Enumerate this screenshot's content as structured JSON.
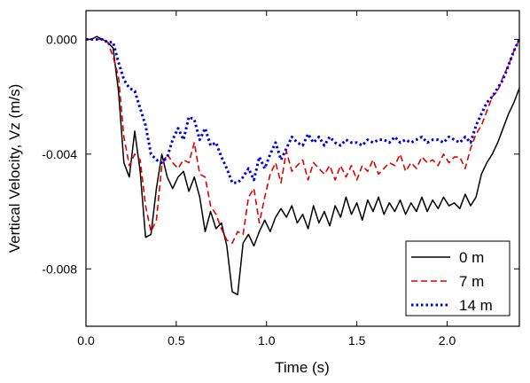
{
  "chart_data": {
    "type": "line",
    "title": "",
    "xlabel": "Time (s)",
    "ylabel": "Vertical Velocity, Vz (m/s)",
    "xlim": [
      0.0,
      2.4
    ],
    "ylim": [
      -0.01,
      0.001
    ],
    "xticks": [
      {
        "value": 0.0,
        "label": "0.0"
      },
      {
        "value": 0.5,
        "label": "0.5"
      },
      {
        "value": 1.0,
        "label": "1.0"
      },
      {
        "value": 1.5,
        "label": "1.5"
      },
      {
        "value": 2.0,
        "label": "2.0"
      }
    ],
    "yticks": [
      {
        "value": 0.0,
        "label": "0.000"
      },
      {
        "value": -0.004,
        "label": "-0.004"
      },
      {
        "value": -0.008,
        "label": "-0.008"
      }
    ],
    "grid": false,
    "legend_position": "bottom-right",
    "series": [
      {
        "name": "0 m",
        "color": "#000000",
        "style": "solid",
        "x": [
          0.0,
          0.03,
          0.06,
          0.09,
          0.12,
          0.15,
          0.18,
          0.21,
          0.24,
          0.27,
          0.3,
          0.33,
          0.36,
          0.39,
          0.42,
          0.45,
          0.48,
          0.51,
          0.54,
          0.57,
          0.6,
          0.63,
          0.66,
          0.69,
          0.72,
          0.75,
          0.78,
          0.81,
          0.84,
          0.87,
          0.9,
          0.93,
          0.96,
          0.99,
          1.02,
          1.05,
          1.08,
          1.11,
          1.14,
          1.17,
          1.2,
          1.23,
          1.26,
          1.29,
          1.32,
          1.35,
          1.38,
          1.41,
          1.44,
          1.47,
          1.5,
          1.53,
          1.56,
          1.59,
          1.62,
          1.65,
          1.68,
          1.71,
          1.74,
          1.77,
          1.8,
          1.83,
          1.86,
          1.89,
          1.92,
          1.95,
          1.98,
          2.01,
          2.04,
          2.07,
          2.1,
          2.13,
          2.16,
          2.19,
          2.22,
          2.25,
          2.28,
          2.31,
          2.34,
          2.37,
          2.4
        ],
        "values": [
          0.0,
          0.0,
          0.0001,
          0.0,
          -0.0001,
          -0.0003,
          -0.0018,
          -0.0043,
          -0.0048,
          -0.0032,
          -0.0046,
          -0.0069,
          -0.0068,
          -0.0052,
          -0.004,
          -0.0048,
          -0.0052,
          -0.0048,
          -0.0046,
          -0.0053,
          -0.0048,
          -0.0055,
          -0.0067,
          -0.006,
          -0.0066,
          -0.0064,
          -0.0072,
          -0.0088,
          -0.0089,
          -0.0071,
          -0.0068,
          -0.0072,
          -0.0067,
          -0.0063,
          -0.0067,
          -0.0062,
          -0.0059,
          -0.0062,
          -0.0058,
          -0.0064,
          -0.0061,
          -0.0066,
          -0.0058,
          -0.0064,
          -0.006,
          -0.0065,
          -0.0058,
          -0.0062,
          -0.0055,
          -0.0061,
          -0.0057,
          -0.0063,
          -0.0056,
          -0.006,
          -0.0055,
          -0.0061,
          -0.0057,
          -0.006,
          -0.0056,
          -0.0061,
          -0.0057,
          -0.006,
          -0.0055,
          -0.006,
          -0.0056,
          -0.0059,
          -0.0055,
          -0.0058,
          -0.0057,
          -0.0059,
          -0.0054,
          -0.0058,
          -0.0055,
          -0.0047,
          -0.0043,
          -0.004,
          -0.0036,
          -0.0031,
          -0.0026,
          -0.0022,
          -0.0017
        ]
      },
      {
        "name": "7 m",
        "color": "#e00000",
        "style": "dashed",
        "x": [
          0.0,
          0.03,
          0.06,
          0.09,
          0.12,
          0.15,
          0.18,
          0.21,
          0.24,
          0.27,
          0.3,
          0.33,
          0.36,
          0.39,
          0.42,
          0.45,
          0.48,
          0.51,
          0.54,
          0.57,
          0.6,
          0.63,
          0.66,
          0.69,
          0.72,
          0.75,
          0.78,
          0.81,
          0.84,
          0.87,
          0.9,
          0.93,
          0.96,
          0.99,
          1.02,
          1.05,
          1.08,
          1.11,
          1.14,
          1.17,
          1.2,
          1.23,
          1.26,
          1.29,
          1.32,
          1.35,
          1.38,
          1.41,
          1.44,
          1.47,
          1.5,
          1.53,
          1.56,
          1.59,
          1.62,
          1.65,
          1.68,
          1.71,
          1.74,
          1.77,
          1.8,
          1.83,
          1.86,
          1.89,
          1.92,
          1.95,
          1.98,
          2.01,
          2.04,
          2.07,
          2.1,
          2.13,
          2.16,
          2.19,
          2.22,
          2.25,
          2.28,
          2.31,
          2.34,
          2.37,
          2.4
        ],
        "values": [
          0.0,
          0.0,
          0.0,
          0.0,
          -0.0001,
          -0.0006,
          -0.0013,
          -0.0034,
          -0.0044,
          -0.004,
          -0.0042,
          -0.0058,
          -0.0067,
          -0.0063,
          -0.0044,
          -0.004,
          -0.0043,
          -0.0045,
          -0.0042,
          -0.0043,
          -0.0036,
          -0.0047,
          -0.0048,
          -0.0058,
          -0.0061,
          -0.0066,
          -0.007,
          -0.0071,
          -0.0067,
          -0.0068,
          -0.0055,
          -0.0052,
          -0.0064,
          -0.0055,
          -0.0047,
          -0.0043,
          -0.005,
          -0.0039,
          -0.0046,
          -0.0044,
          -0.0042,
          -0.0049,
          -0.0043,
          -0.0045,
          -0.0047,
          -0.0044,
          -0.0049,
          -0.0044,
          -0.0048,
          -0.0044,
          -0.0049,
          -0.0044,
          -0.0046,
          -0.0042,
          -0.0047,
          -0.0045,
          -0.0043,
          -0.0044,
          -0.004,
          -0.0046,
          -0.0043,
          -0.0045,
          -0.0041,
          -0.0043,
          -0.0042,
          -0.0044,
          -0.004,
          -0.0043,
          -0.0041,
          -0.0041,
          -0.0045,
          -0.0038,
          -0.0033,
          -0.003,
          -0.0025,
          -0.002,
          -0.0018,
          -0.0013,
          -0.0009,
          -0.0004,
          0.0
        ]
      },
      {
        "name": "14 m",
        "color": "#0000e0",
        "style": "dotted",
        "x": [
          0.0,
          0.03,
          0.06,
          0.09,
          0.12,
          0.15,
          0.18,
          0.21,
          0.24,
          0.27,
          0.3,
          0.33,
          0.36,
          0.39,
          0.42,
          0.45,
          0.48,
          0.51,
          0.54,
          0.57,
          0.6,
          0.63,
          0.66,
          0.69,
          0.72,
          0.75,
          0.78,
          0.81,
          0.84,
          0.87,
          0.9,
          0.93,
          0.96,
          0.99,
          1.02,
          1.05,
          1.08,
          1.11,
          1.14,
          1.17,
          1.2,
          1.23,
          1.26,
          1.29,
          1.32,
          1.35,
          1.38,
          1.41,
          1.44,
          1.47,
          1.5,
          1.53,
          1.56,
          1.59,
          1.62,
          1.65,
          1.68,
          1.71,
          1.74,
          1.77,
          1.8,
          1.83,
          1.86,
          1.89,
          1.92,
          1.95,
          1.98,
          2.01,
          2.04,
          2.07,
          2.1,
          2.13,
          2.16,
          2.19,
          2.22,
          2.25,
          2.28,
          2.31,
          2.34,
          2.37,
          2.4
        ],
        "values": [
          0.0,
          0.0,
          0.0,
          0.0,
          -0.0001,
          -0.0001,
          -0.0008,
          -0.0014,
          -0.0017,
          -0.0018,
          -0.0024,
          -0.003,
          -0.004,
          -0.0042,
          -0.0043,
          -0.0041,
          -0.0035,
          -0.0031,
          -0.0035,
          -0.0027,
          -0.0028,
          -0.0035,
          -0.0031,
          -0.0037,
          -0.0036,
          -0.0041,
          -0.0045,
          -0.005,
          -0.005,
          -0.0048,
          -0.0045,
          -0.0049,
          -0.0041,
          -0.0045,
          -0.004,
          -0.0036,
          -0.0042,
          -0.0038,
          -0.0034,
          -0.0036,
          -0.0037,
          -0.0033,
          -0.0036,
          -0.0034,
          -0.0037,
          -0.0034,
          -0.0036,
          -0.0037,
          -0.0035,
          -0.0036,
          -0.0036,
          -0.0037,
          -0.0035,
          -0.0036,
          -0.0035,
          -0.0035,
          -0.0036,
          -0.0034,
          -0.0036,
          -0.0035,
          -0.0036,
          -0.0035,
          -0.0034,
          -0.0036,
          -0.0035,
          -0.0035,
          -0.0036,
          -0.0034,
          -0.0035,
          -0.0036,
          -0.0034,
          -0.0036,
          -0.003,
          -0.0026,
          -0.0022,
          -0.002,
          -0.0017,
          -0.0014,
          -0.0009,
          -0.0004,
          0.0
        ]
      }
    ]
  }
}
